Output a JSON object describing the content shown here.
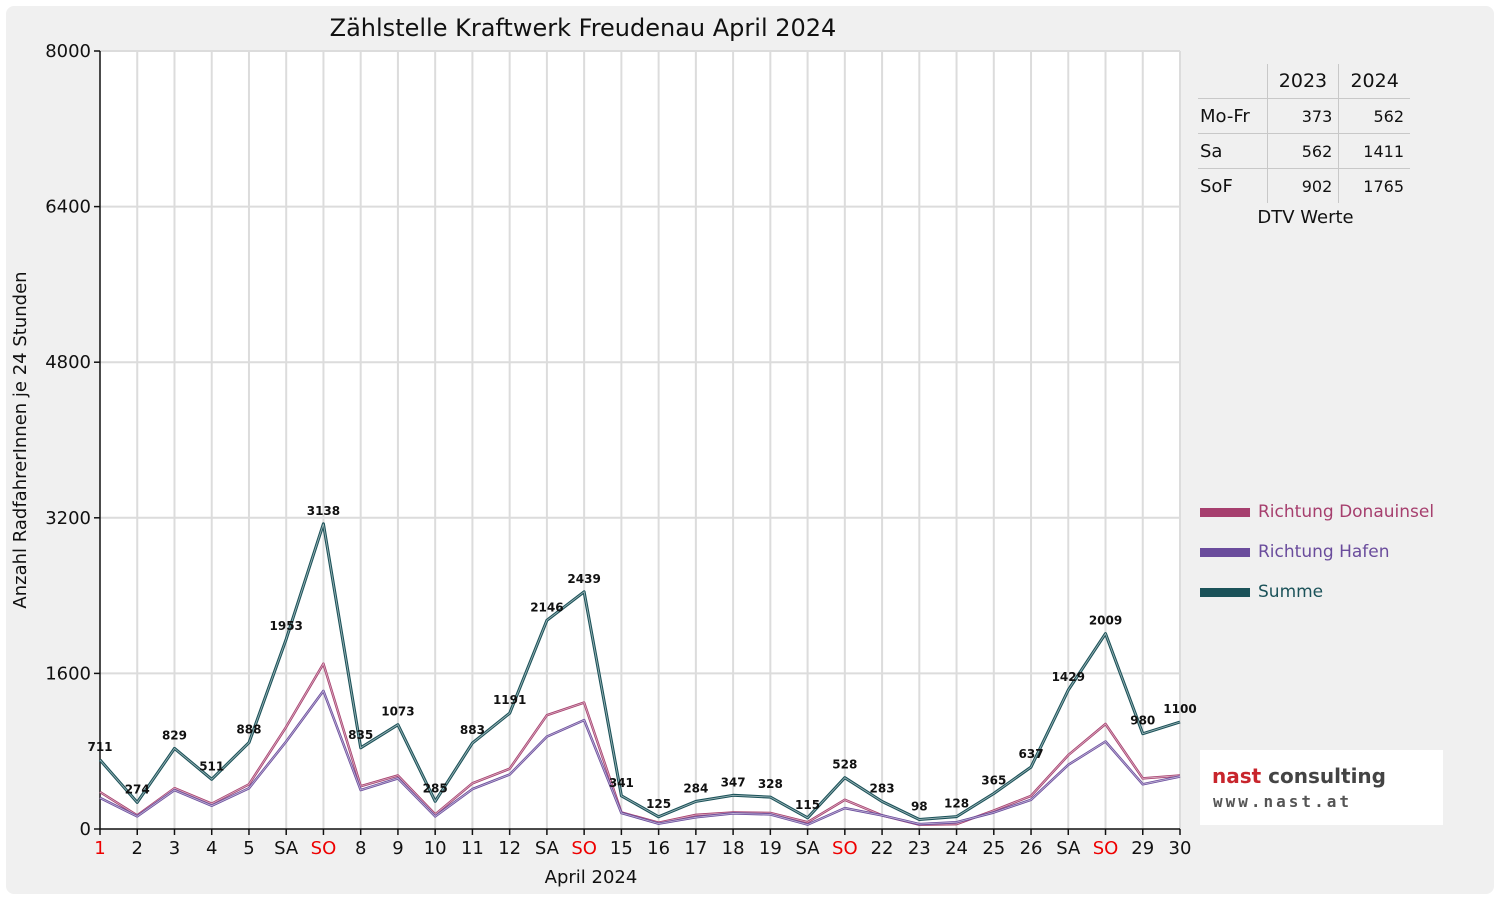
{
  "chart_data": {
    "type": "line",
    "title": "Zählstelle Kraftwerk Freudenau April 2024",
    "xlabel": "April 2024",
    "ylabel": "Anzahl RadfahrerInnen je 24 Stunden",
    "ylim": [
      0,
      8000
    ],
    "yticks": [
      "0",
      "1600",
      "3200",
      "4800",
      "6400",
      "8000"
    ],
    "grid": true,
    "legend_position": "right",
    "categories": [
      "1",
      "2",
      "3",
      "4",
      "5",
      "SA",
      "SO",
      "8",
      "9",
      "10",
      "11",
      "12",
      "SA",
      "SO",
      "15",
      "16",
      "17",
      "18",
      "19",
      "SA",
      "SO",
      "22",
      "23",
      "24",
      "25",
      "26",
      "SA",
      "SO",
      "29",
      "30"
    ],
    "highlight_categories": [
      0,
      6,
      13,
      20,
      27
    ],
    "highlight_color": "#ee0000",
    "series": [
      {
        "name": "Richtung Donauinsel",
        "color": "#a63f6e",
        "values": [
          380,
          140,
          420,
          260,
          460,
          1050,
          1700,
          440,
          550,
          150,
          470,
          620,
          1170,
          1300,
          170,
          65,
          145,
          170,
          165,
          70,
          300,
          140,
          45,
          50,
          190,
          340,
          760,
          1080,
          520,
          550
        ]
      },
      {
        "name": "Richtung Hafen",
        "color": "#6a4c9c",
        "values": [
          320,
          130,
          400,
          240,
          420,
          900,
          1420,
          400,
          520,
          130,
          410,
          560,
          950,
          1120,
          165,
          55,
          120,
          160,
          150,
          45,
          215,
          140,
          50,
          70,
          170,
          300,
          660,
          900,
          460,
          540
        ]
      },
      {
        "name": "Summe",
        "color": "#1b5259",
        "values": [
          711,
          274,
          829,
          511,
          888,
          1953,
          3138,
          835,
          1073,
          285,
          883,
          1191,
          2146,
          2439,
          341,
          125,
          284,
          347,
          328,
          115,
          528,
          283,
          98,
          128,
          365,
          637,
          1429,
          2009,
          980,
          1100
        ]
      }
    ],
    "data_labels": [
      "711",
      "274",
      "829",
      "511",
      "888",
      "1953",
      "3138",
      "835",
      "1073",
      "285",
      "883",
      "1191",
      "2146",
      "2439",
      "341",
      "125",
      "284",
      "347",
      "328",
      "115",
      "528",
      "283",
      "98",
      "128",
      "365",
      "637",
      "1429",
      "2009",
      "980",
      "1100"
    ]
  },
  "dtv_table": {
    "years": [
      "2023",
      "2024"
    ],
    "rows": [
      {
        "label": "Mo-Fr",
        "v2023": "373",
        "v2024": "562"
      },
      {
        "label": "Sa",
        "v2023": "562",
        "v2024": "1411"
      },
      {
        "label": "SoF",
        "v2023": "902",
        "v2024": "1765"
      }
    ],
    "caption": "DTV Werte"
  },
  "logo": {
    "name_nast": "nast",
    "name_consulting": "consulting",
    "name_color_nast": "#c8252c",
    "name_color_consulting": "#444444",
    "url": "www.nast.at"
  }
}
